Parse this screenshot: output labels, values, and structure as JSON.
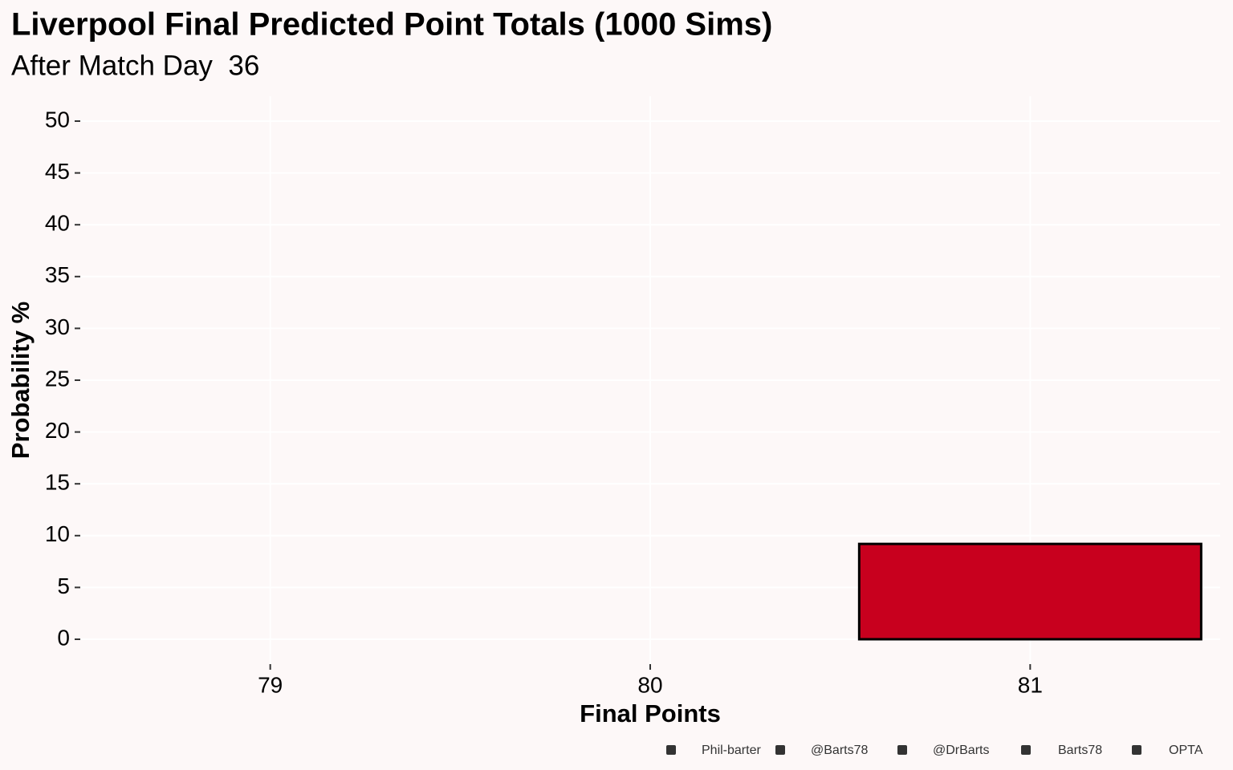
{
  "chart_data": {
    "type": "bar",
    "title": "Liverpool Final Predicted Point Totals (1000 Sims)",
    "subtitle": "After Match Day  36",
    "x_label": "Final Points",
    "y_label": "Probability %",
    "categories": [
      "79",
      "80",
      "81"
    ],
    "values": [
      0,
      null,
      9.2
    ],
    "color": "#c8001e",
    "ylim": [
      -2.4,
      52.4
    ],
    "yticks": [
      0,
      5,
      10,
      15,
      20,
      25,
      30,
      35,
      40,
      45,
      50
    ],
    "grid": true,
    "caption_items": [
      "Phil-barter",
      "@Barts78",
      "@DrBarts",
      "Barts78",
      "OPTA"
    ]
  }
}
